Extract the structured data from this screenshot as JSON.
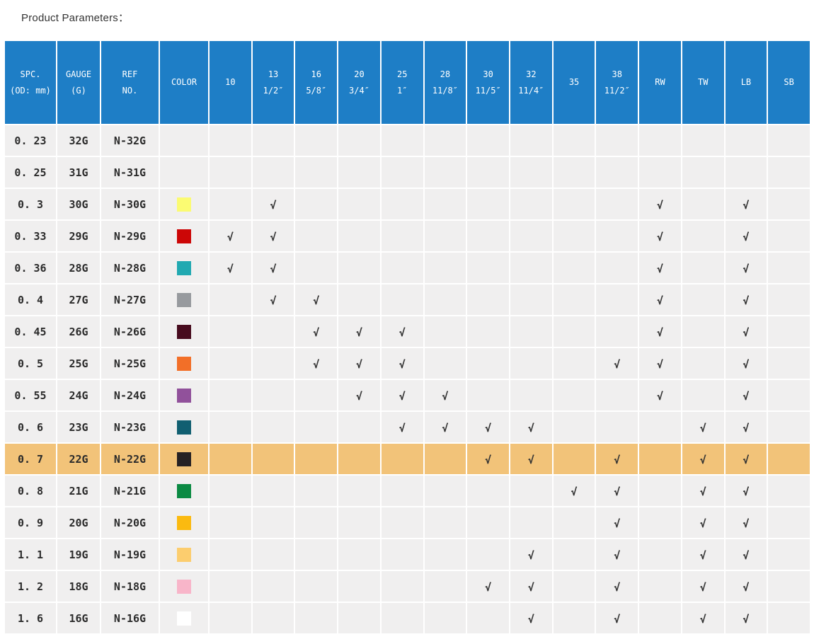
{
  "title": "Product Parameters：",
  "colors": {
    "header_bg": "#1E7EC6",
    "header_text": "#FFFFFF",
    "cell_bg": "#F0EFEF",
    "highlight_bg": "#F2C379",
    "body_text": "#2B2B2B",
    "check": "#333333"
  },
  "table": {
    "check_glyph": "√",
    "columns": [
      {
        "id": "spc",
        "label_lines": [
          "SPC.",
          "(OD: mm)"
        ]
      },
      {
        "id": "gauge",
        "label_lines": [
          "GAUGE",
          "(G)"
        ]
      },
      {
        "id": "ref",
        "label_lines": [
          "REF",
          "NO."
        ]
      },
      {
        "id": "color",
        "label_lines": [
          "COLOR"
        ]
      },
      {
        "id": "c10",
        "label_lines": [
          "10"
        ]
      },
      {
        "id": "c13",
        "label_lines": [
          "13",
          "1/2″"
        ]
      },
      {
        "id": "c16",
        "label_lines": [
          "16",
          "5/8″"
        ]
      },
      {
        "id": "c20",
        "label_lines": [
          "20",
          "3/4″"
        ]
      },
      {
        "id": "c25",
        "label_lines": [
          "25",
          "1″"
        ]
      },
      {
        "id": "c28",
        "label_lines": [
          "28",
          "11/8″"
        ]
      },
      {
        "id": "c30",
        "label_lines": [
          "30",
          "11/5″"
        ]
      },
      {
        "id": "c32",
        "label_lines": [
          "32",
          "11/4″"
        ]
      },
      {
        "id": "c35",
        "label_lines": [
          "35"
        ]
      },
      {
        "id": "c38",
        "label_lines": [
          "38",
          "11/2″"
        ]
      },
      {
        "id": "rw",
        "label_lines": [
          "RW"
        ]
      },
      {
        "id": "tw",
        "label_lines": [
          "TW"
        ]
      },
      {
        "id": "lb",
        "label_lines": [
          "LB"
        ]
      },
      {
        "id": "sb",
        "label_lines": [
          "SB"
        ]
      }
    ],
    "rows": [
      {
        "spc": "0. 23",
        "gauge": "32G",
        "ref": "N-32G",
        "color": null,
        "checks": [],
        "highlight": false
      },
      {
        "spc": "0. 25",
        "gauge": "31G",
        "ref": "N-31G",
        "color": null,
        "checks": [],
        "highlight": false
      },
      {
        "spc": "0. 3",
        "gauge": "30G",
        "ref": "N-30G",
        "color": "#FBFB72",
        "checks": [
          "c13",
          "rw",
          "lb"
        ],
        "highlight": false
      },
      {
        "spc": "0. 33",
        "gauge": "29G",
        "ref": "N-29G",
        "color": "#CC0606",
        "checks": [
          "c10",
          "c13",
          "rw",
          "lb"
        ],
        "highlight": false
      },
      {
        "spc": "0. 36",
        "gauge": "28G",
        "ref": "N-28G",
        "color": "#21A9B1",
        "checks": [
          "c10",
          "c13",
          "rw",
          "lb"
        ],
        "highlight": false
      },
      {
        "spc": "0. 4",
        "gauge": "27G",
        "ref": "N-27G",
        "color": "#979A9E",
        "checks": [
          "c13",
          "c16",
          "rw",
          "lb"
        ],
        "highlight": false
      },
      {
        "spc": "0. 45",
        "gauge": "26G",
        "ref": "N-26G",
        "color": "#470B1E",
        "checks": [
          "c16",
          "c20",
          "c25",
          "rw",
          "lb"
        ],
        "highlight": false
      },
      {
        "spc": "0. 5",
        "gauge": "25G",
        "ref": "N-25G",
        "color": "#F26F28",
        "checks": [
          "c16",
          "c20",
          "c25",
          "c38",
          "rw",
          "lb"
        ],
        "highlight": false
      },
      {
        "spc": "0. 55",
        "gauge": "24G",
        "ref": "N-24G",
        "color": "#91519B",
        "checks": [
          "c20",
          "c25",
          "c28",
          "rw",
          "lb"
        ],
        "highlight": false
      },
      {
        "spc": "0. 6",
        "gauge": "23G",
        "ref": "N-23G",
        "color": "#115F71",
        "checks": [
          "c25",
          "c28",
          "c30",
          "c32",
          "tw",
          "lb"
        ],
        "highlight": false
      },
      {
        "spc": "0. 7",
        "gauge": "22G",
        "ref": "N-22G",
        "color": "#262123",
        "checks": [
          "c30",
          "c32",
          "c38",
          "tw",
          "lb"
        ],
        "highlight": true
      },
      {
        "spc": "0. 8",
        "gauge": "21G",
        "ref": "N-21G",
        "color": "#0B8A43",
        "checks": [
          "c35",
          "c38",
          "tw",
          "lb"
        ],
        "highlight": false
      },
      {
        "spc": "0. 9",
        "gauge": "20G",
        "ref": "N-20G",
        "color": "#FBBA10",
        "checks": [
          "c38",
          "tw",
          "lb"
        ],
        "highlight": false
      },
      {
        "spc": "1. 1",
        "gauge": "19G",
        "ref": "N-19G",
        "color": "#FCCD6E",
        "checks": [
          "c32",
          "c38",
          "tw",
          "lb"
        ],
        "highlight": false
      },
      {
        "spc": "1. 2",
        "gauge": "18G",
        "ref": "N-18G",
        "color": "#F8B5C9",
        "checks": [
          "c30",
          "c32",
          "c38",
          "tw",
          "lb"
        ],
        "highlight": false
      },
      {
        "spc": "1. 6",
        "gauge": "16G",
        "ref": "N-16G",
        "color": "#FFFFFF",
        "checks": [
          "c32",
          "c38",
          "tw",
          "lb"
        ],
        "highlight": false
      }
    ]
  }
}
